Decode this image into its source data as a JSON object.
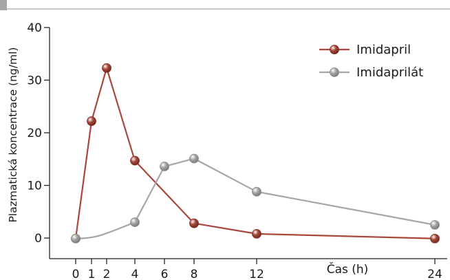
{
  "chart_data": {
    "type": "line",
    "title": "",
    "xlabel": "Čas (h)",
    "ylabel": "Plazmatická koncentrace (ng/ml)",
    "x_ticks": [
      0,
      1,
      2,
      4,
      6,
      8,
      12,
      24
    ],
    "y_ticks": [
      0,
      10,
      20,
      30,
      40
    ],
    "ylim": [
      0,
      40
    ],
    "grid": false,
    "legend_position": "top-right",
    "series": [
      {
        "name": "Imidapril",
        "color": "#a8473a",
        "x": [
          0,
          1,
          2,
          4,
          8,
          12,
          24
        ],
        "y": [
          -0.1,
          22.2,
          32.3,
          14.7,
          2.8,
          0.8,
          -0.1
        ]
      },
      {
        "name": "Imidaprilát",
        "color": "#a6a6a6",
        "x": [
          0,
          4,
          6,
          8,
          12,
          24
        ],
        "y": [
          -0.1,
          3.0,
          13.6,
          15.1,
          8.8,
          2.5
        ]
      }
    ]
  }
}
